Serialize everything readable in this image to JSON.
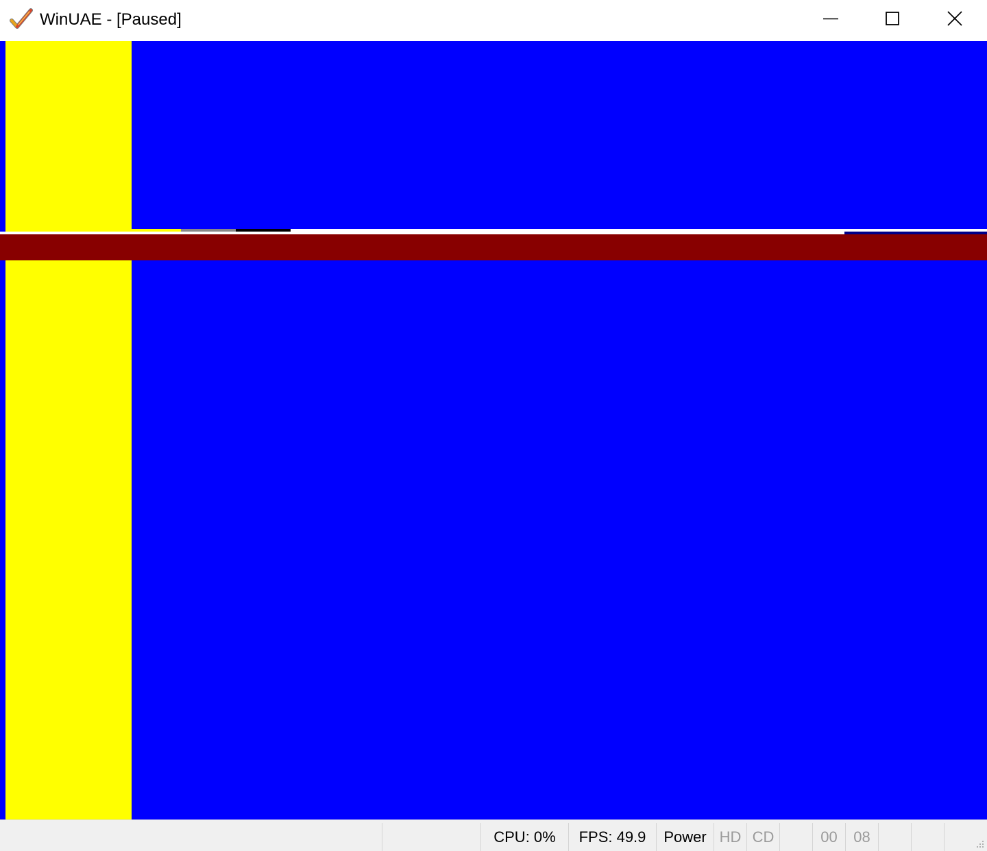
{
  "window": {
    "title": "WinUAE - [Paused]",
    "icon": "winuae-checkmark-icon",
    "controls": {
      "minimize_icon": "minimize-icon",
      "maximize_icon": "maximize-icon",
      "close_icon": "close-icon"
    }
  },
  "display": {
    "state": "paused",
    "colors": {
      "blue": "#0000ff",
      "yellow": "#ffff00",
      "dark_red": "#880000",
      "white": "#ffffff",
      "grey": "#888888",
      "black": "#000000",
      "navy": "#000088"
    }
  },
  "statusbar": {
    "cpu": "CPU: 0%",
    "fps": "FPS: 49.9",
    "power": "Power",
    "hd": "HD",
    "cd": "CD",
    "drive0": "00",
    "drive1": "08",
    "grip_icon": "resize-grip-icon"
  }
}
